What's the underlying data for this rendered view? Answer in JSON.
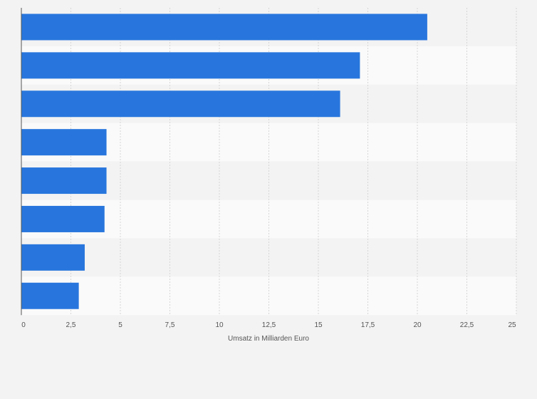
{
  "chart_data": {
    "type": "bar",
    "orientation": "horizontal",
    "categories": [
      "",
      "",
      "",
      "",
      "",
      "",
      "",
      ""
    ],
    "values": [
      20.5,
      17.1,
      16.1,
      4.3,
      4.3,
      4.2,
      3.2,
      2.9
    ],
    "xlabel": "Umsatz in Milliarden Euro",
    "ylabel": "",
    "xlim": [
      0,
      25
    ],
    "x_ticks": [
      0,
      2.5,
      5,
      7.5,
      10,
      12.5,
      15,
      17.5,
      20,
      22.5,
      25
    ],
    "x_tick_labels": [
      "0",
      "2,5",
      "5",
      "7,5",
      "10",
      "12,5",
      "15",
      "17,5",
      "20",
      "22,5",
      "25"
    ],
    "grid": "vertical dashed",
    "bar_color": "#2876dd",
    "band_colors": [
      "#f3f3f3",
      "#fafafa"
    ]
  }
}
